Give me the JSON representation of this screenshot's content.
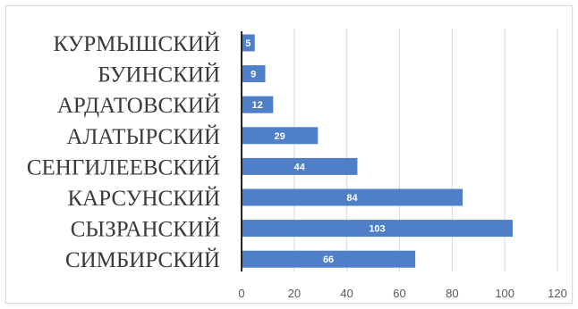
{
  "chart_data": {
    "type": "bar",
    "orientation": "horizontal",
    "categories": [
      "КУРМЫШСКИЙ",
      "БУИНСКИЙ",
      "АРДАТОВСКИЙ",
      "АЛАТЫРСКИЙ",
      "СЕНГИЛЕЕВСКИЙ",
      "КАРСУНСКИЙ",
      "СЫЗРАНСКИЙ",
      "СИМБИРСКИЙ"
    ],
    "values": [
      5,
      9,
      12,
      29,
      44,
      84,
      103,
      66
    ],
    "data_labels": [
      "5",
      "9",
      "12",
      "29",
      "44",
      "84",
      "103",
      "66"
    ],
    "xlim": [
      0,
      120
    ],
    "xticks": [
      0,
      20,
      40,
      60,
      80,
      100,
      120
    ],
    "xtick_labels": [
      "0",
      "20",
      "40",
      "60",
      "80",
      "100",
      "120"
    ],
    "grid": "vertical",
    "legend": "none",
    "colors": {
      "bar": "#4f7fc6",
      "grid": "#d9d9d9",
      "axis": "#222222"
    }
  }
}
